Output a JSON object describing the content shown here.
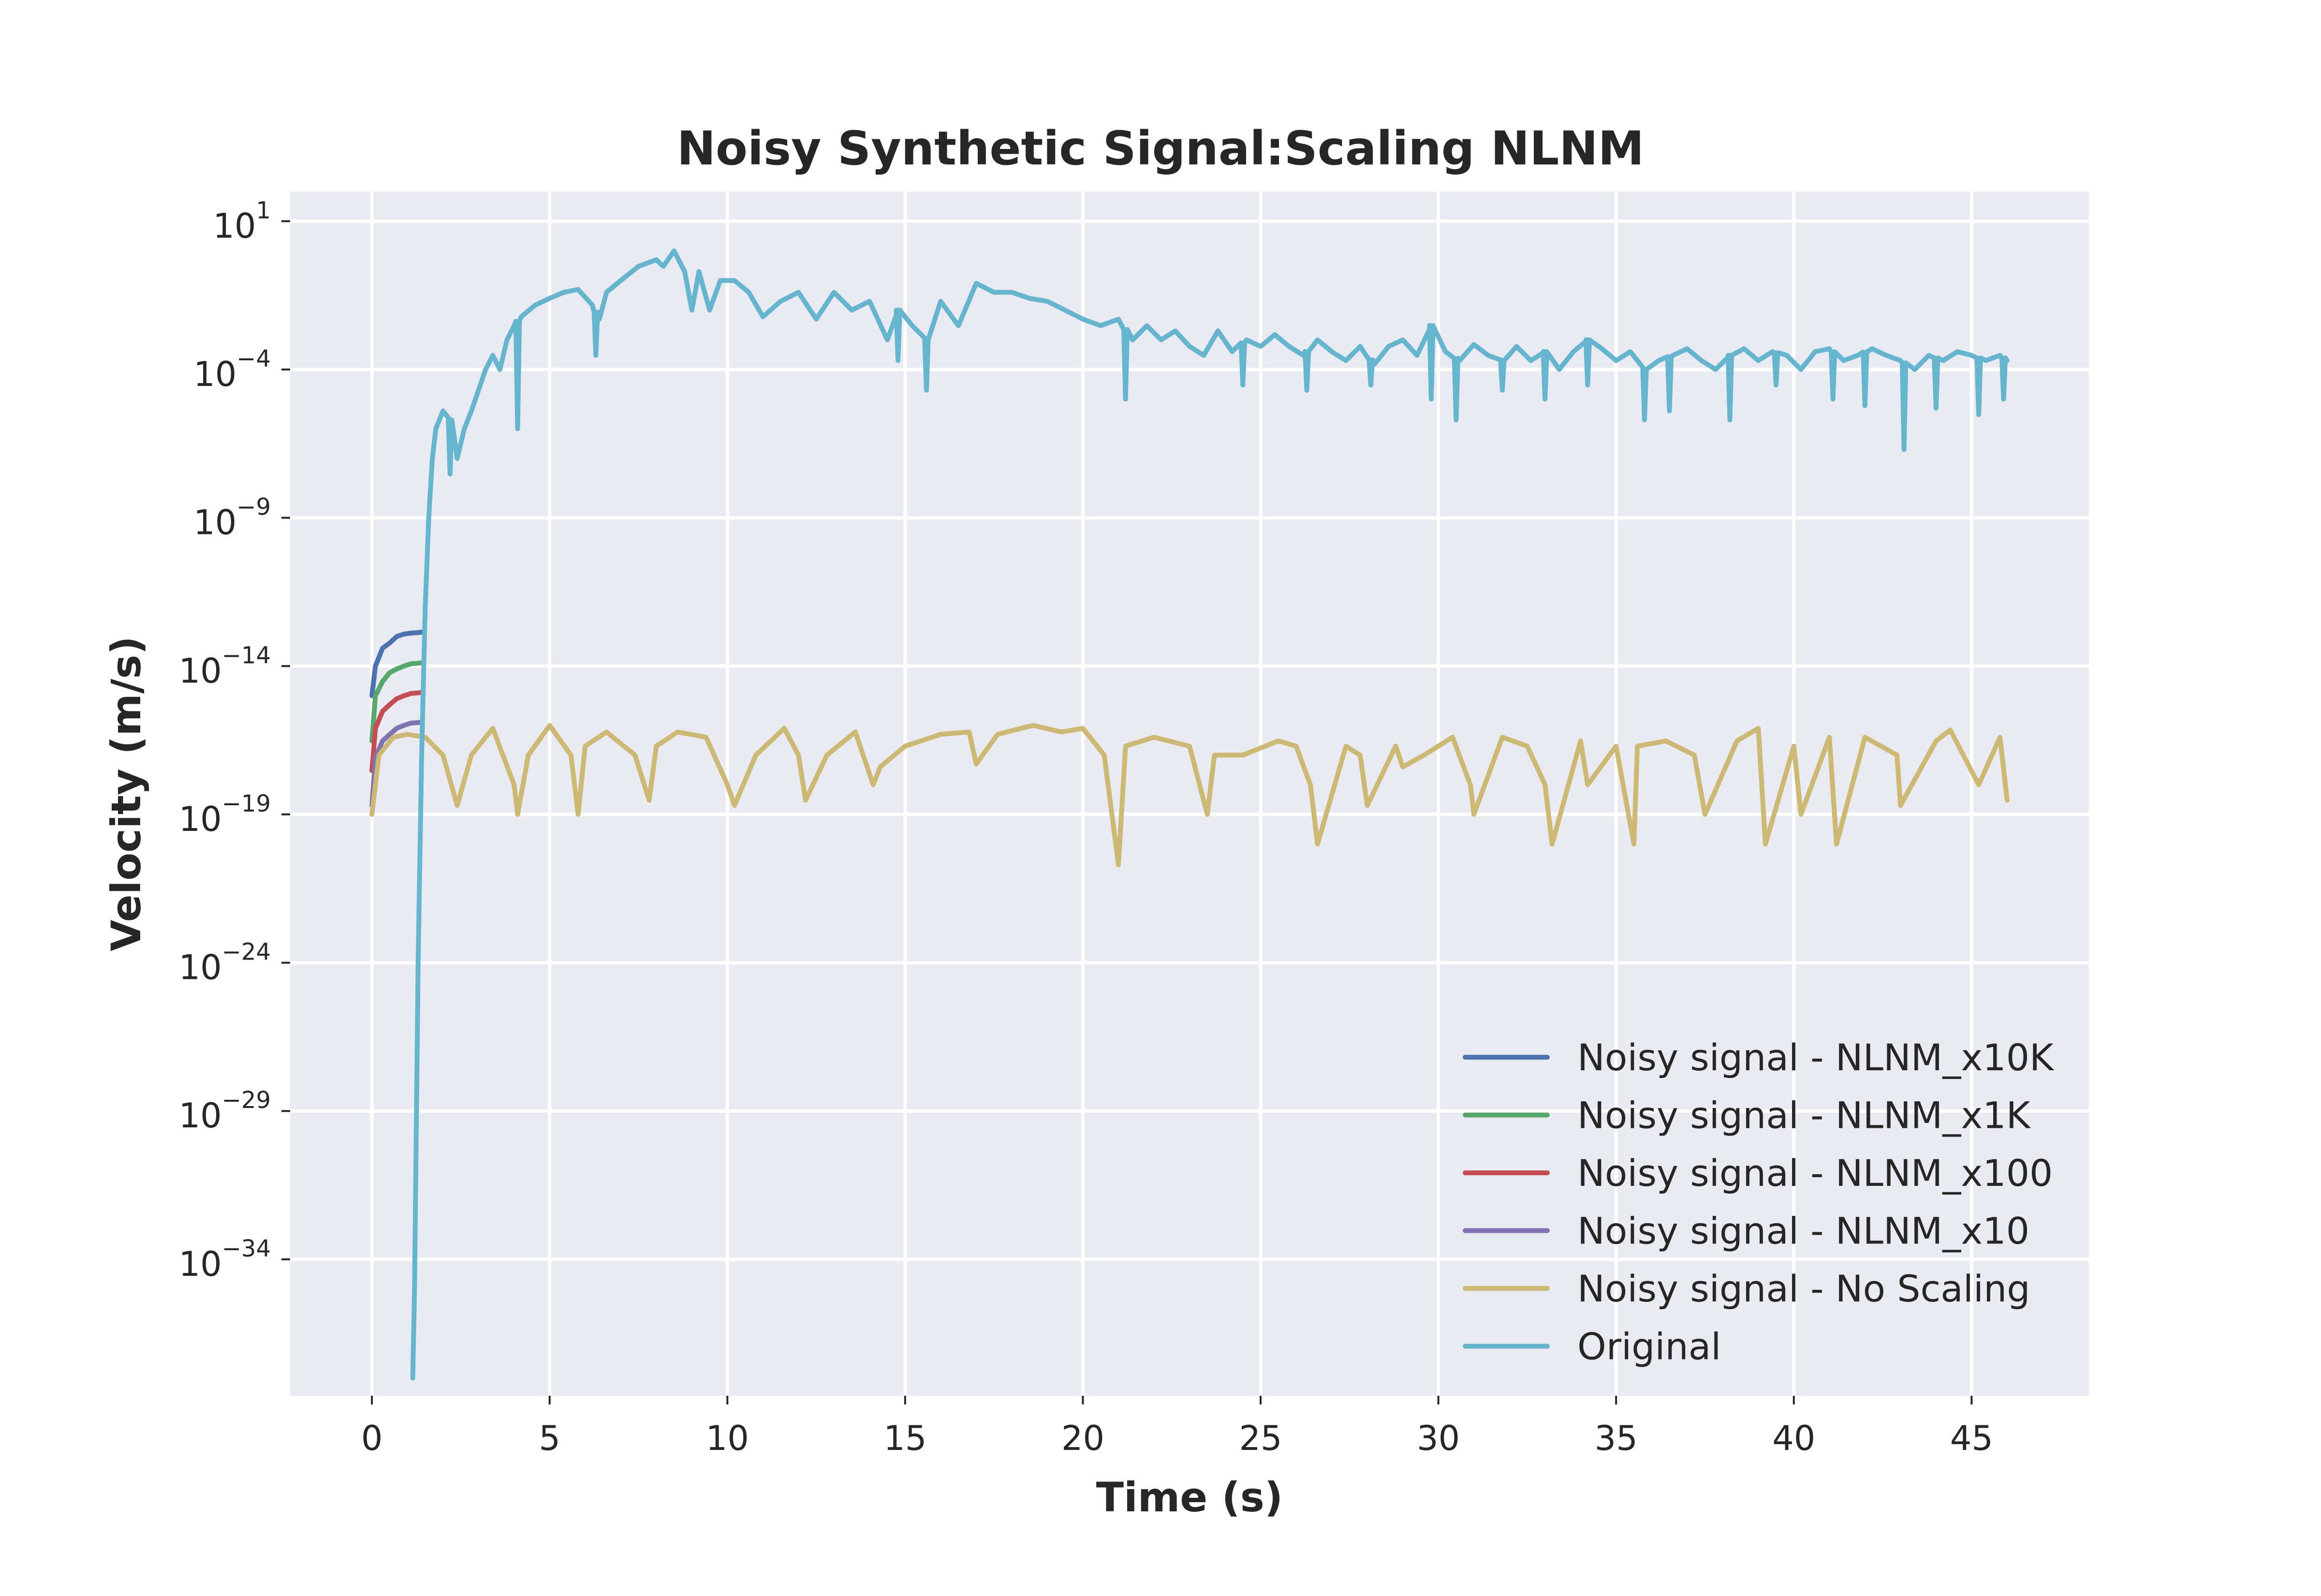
{
  "chart_data": {
    "type": "line",
    "title": "Noisy Synthetic Signal:Scaling NLNM",
    "xlabel": "Time (s)",
    "ylabel": "Velocity (m/s)",
    "y_scale": "log",
    "xlim": [
      -2.3,
      48.3
    ],
    "ylim_exponent": [
      -38.6,
      2.0
    ],
    "grid": true,
    "legend_position": "lower-right",
    "background": "#eaeaf2",
    "x_ticks": [
      0,
      5,
      10,
      15,
      20,
      25,
      30,
      35,
      40,
      45
    ],
    "y_ticks": [
      {
        "base": "10",
        "exp": "1",
        "value": 1
      },
      {
        "base": "10",
        "exp": "−4",
        "value": -4
      },
      {
        "base": "10",
        "exp": "−9",
        "value": -9
      },
      {
        "base": "10",
        "exp": "−14",
        "value": -14
      },
      {
        "base": "10",
        "exp": "−19",
        "value": -19
      },
      {
        "base": "10",
        "exp": "−24",
        "value": -24
      },
      {
        "base": "10",
        "exp": "−29",
        "value": -29
      },
      {
        "base": "10",
        "exp": "−34",
        "value": -34
      }
    ],
    "series": [
      {
        "name": "Noisy signal - NLNM_x10K",
        "color": "#4c72b0",
        "x": [
          0.0,
          0.1,
          0.3,
          0.5,
          0.7,
          0.9,
          1.1,
          1.3,
          1.4
        ],
        "y": [
          1e-15,
          1e-14,
          4e-14,
          6e-14,
          1e-13,
          1.2e-13,
          1.3e-13,
          1.35e-13,
          1.4e-13
        ]
      },
      {
        "name": "Noisy signal - NLNM_x1K",
        "color": "#55a868",
        "x": [
          0.0,
          0.1,
          0.3,
          0.5,
          0.7,
          0.9,
          1.1,
          1.3,
          1.4
        ],
        "y": [
          3e-17,
          1e-15,
          3e-15,
          6e-15,
          8e-15,
          1e-14,
          1.2e-14,
          1.25e-14,
          1.3e-14
        ]
      },
      {
        "name": "Noisy signal - NLNM_x100",
        "color": "#c44e52",
        "x": [
          0.0,
          0.1,
          0.3,
          0.5,
          0.7,
          0.9,
          1.1,
          1.3,
          1.4
        ],
        "y": [
          3e-18,
          8e-17,
          3e-16,
          5e-16,
          8e-16,
          1e-15,
          1.2e-15,
          1.25e-15,
          1.3e-15
        ]
      },
      {
        "name": "Noisy signal - NLNM_x10",
        "color": "#8172b2",
        "x": [
          0.0,
          0.1,
          0.3,
          0.5,
          0.7,
          0.9,
          1.1,
          1.3,
          1.4
        ],
        "y": [
          2e-19,
          8e-18,
          3e-17,
          5e-17,
          8e-17,
          1e-16,
          1.2e-16,
          1.25e-16,
          1.3e-16
        ]
      },
      {
        "name": "Noisy signal - No Scaling",
        "color": "#ccb974",
        "x": [
          0.0,
          0.2,
          0.6,
          1.0,
          1.5,
          2.0,
          2.4,
          2.8,
          3.4,
          4.0,
          4.1,
          4.4,
          5.0,
          5.6,
          5.8,
          6.0,
          6.6,
          7.4,
          7.8,
          8.0,
          8.6,
          9.4,
          10.0,
          10.2,
          10.8,
          11.6,
          12.0,
          12.2,
          12.8,
          13.6,
          14.1,
          14.3,
          15.0,
          16.0,
          16.8,
          17.0,
          17.6,
          18.6,
          19.4,
          20.0,
          20.6,
          21.0,
          21.2,
          22.0,
          23.0,
          23.5,
          23.7,
          24.5,
          25.5,
          26.0,
          26.4,
          26.6,
          27.4,
          27.8,
          28.0,
          28.8,
          29.0,
          29.6,
          30.4,
          30.9,
          31.0,
          31.8,
          32.5,
          33.0,
          33.2,
          34.0,
          34.2,
          35.0,
          35.5,
          35.6,
          36.4,
          37.2,
          37.5,
          38.4,
          39.0,
          39.2,
          40.0,
          40.2,
          41.0,
          41.2,
          42.0,
          42.9,
          43.0,
          44.0,
          44.4,
          45.2,
          45.8,
          46.0
        ],
        "y": [
          1e-19,
          1e-17,
          4e-17,
          5e-17,
          4e-17,
          1e-17,
          2e-19,
          1e-17,
          8e-17,
          1e-18,
          1e-19,
          1e-17,
          1e-16,
          1e-17,
          1e-19,
          2e-17,
          6e-17,
          1e-17,
          3e-19,
          2e-17,
          6e-17,
          4e-17,
          1e-18,
          2e-19,
          1e-17,
          8e-17,
          1e-17,
          3e-19,
          1e-17,
          6e-17,
          1e-18,
          4e-18,
          2e-17,
          5e-17,
          6e-17,
          5e-18,
          5e-17,
          1e-16,
          6e-17,
          8e-17,
          1e-17,
          2e-21,
          2e-17,
          4e-17,
          2e-17,
          1e-19,
          1e-17,
          1e-17,
          3e-17,
          2e-17,
          1e-18,
          1e-20,
          2e-17,
          1e-17,
          2e-19,
          2e-17,
          4e-18,
          1e-17,
          4e-17,
          1e-18,
          1e-19,
          4e-17,
          2e-17,
          1e-18,
          1e-20,
          3e-17,
          1e-18,
          2e-17,
          1e-20,
          2e-17,
          3e-17,
          1e-17,
          1e-19,
          3e-17,
          8e-17,
          1e-20,
          2e-17,
          1e-19,
          4e-17,
          1e-20,
          4e-17,
          1e-17,
          2e-19,
          3e-17,
          7e-17,
          1e-18,
          4e-17,
          3e-19
        ]
      },
      {
        "name": "Original",
        "color": "#64b5cd",
        "x": [
          1.15,
          1.2,
          1.3,
          1.4,
          1.5,
          1.6,
          1.7,
          1.8,
          2.0,
          2.2,
          2.4,
          2.6,
          2.8,
          3.0,
          3.2,
          3.4,
          3.6,
          3.8,
          4.0,
          4.2,
          4.6,
          5.0,
          5.4,
          5.8,
          6.2,
          6.4,
          6.6,
          7.0,
          7.5,
          8.0,
          8.2,
          8.5,
          8.8,
          9.0,
          9.2,
          9.5,
          9.8,
          10.2,
          10.6,
          11.0,
          11.5,
          12.0,
          12.5,
          13.0,
          13.5,
          14.0,
          14.5,
          14.8,
          15.2,
          15.6,
          16.0,
          16.5,
          17.0,
          17.5,
          18.0,
          18.5,
          19.0,
          19.5,
          20.0,
          20.5,
          21.0,
          21.4,
          21.8,
          22.2,
          22.6,
          23.0,
          23.4,
          23.8,
          24.2,
          24.6,
          25.0,
          25.4,
          25.8,
          26.2,
          26.6,
          27.0,
          27.4,
          27.8,
          28.2,
          28.6,
          29.0,
          29.4,
          29.8,
          30.2,
          30.6,
          31.0,
          31.4,
          31.8,
          32.2,
          32.6,
          33.0,
          33.4,
          33.8,
          34.2,
          34.6,
          35.0,
          35.4,
          35.8,
          36.2,
          36.6,
          37.0,
          37.4,
          37.8,
          38.2,
          38.6,
          39.0,
          39.4,
          39.8,
          40.2,
          40.6,
          41.0,
          41.4,
          41.8,
          42.2,
          42.6,
          43.0,
          43.4,
          43.8,
          44.2,
          44.6,
          45.0,
          45.4,
          45.8,
          46.0
        ],
        "y": [
          1e-38,
          1e-35,
          1e-24,
          1e-17,
          1e-12,
          1e-09,
          1e-07,
          1e-06,
          4e-06,
          2e-06,
          1e-07,
          1e-06,
          4e-06,
          2e-05,
          0.0001,
          0.0003,
          0.0001,
          0.001,
          0.003,
          0.006,
          0.015,
          0.025,
          0.04,
          0.05,
          0.015,
          0.005,
          0.04,
          0.1,
          0.3,
          0.5,
          0.3,
          1.0,
          0.2,
          0.01,
          0.2,
          0.01,
          0.1,
          0.1,
          0.04,
          0.006,
          0.02,
          0.04,
          0.005,
          0.04,
          0.01,
          0.02,
          0.001,
          0.01,
          0.003,
          0.001,
          0.02,
          0.003,
          0.08,
          0.04,
          0.04,
          0.025,
          0.02,
          0.01,
          0.005,
          0.003,
          0.005,
          0.001,
          0.003,
          0.001,
          0.002,
          0.0006,
          0.0003,
          0.002,
          0.0004,
          0.001,
          0.0006,
          0.0015,
          0.0006,
          0.0003,
          0.001,
          0.0004,
          0.0002,
          0.0006,
          0.00015,
          0.0006,
          0.001,
          0.0003,
          0.003,
          0.0004,
          0.0002,
          0.0007,
          0.0003,
          0.0002,
          0.0006,
          0.0002,
          0.0004,
          0.0001,
          0.0004,
          0.001,
          0.0005,
          0.0002,
          0.0004,
          0.0001,
          0.0002,
          0.0003,
          0.0005,
          0.0002,
          0.0001,
          0.0003,
          0.0005,
          0.0002,
          0.0004,
          0.0003,
          0.0001,
          0.0004,
          0.0005,
          0.0002,
          0.0003,
          0.0005,
          0.0003,
          0.0002,
          0.0001,
          0.0003,
          0.0002,
          0.0004,
          0.0003,
          0.0002,
          0.0003,
          0.0002
        ],
        "drops": [
          [
            2.2,
            3e-08
          ],
          [
            4.1,
            1e-06
          ],
          [
            6.3,
            0.0003
          ],
          [
            14.8,
            0.0002
          ],
          [
            15.6,
            2e-05
          ],
          [
            21.2,
            1e-05
          ],
          [
            24.5,
            3e-05
          ],
          [
            26.3,
            2e-05
          ],
          [
            28.1,
            3e-05
          ],
          [
            29.8,
            1e-05
          ],
          [
            30.5,
            2e-06
          ],
          [
            31.8,
            2e-05
          ],
          [
            33.0,
            1e-05
          ],
          [
            34.2,
            3e-05
          ],
          [
            35.8,
            2e-06
          ],
          [
            36.5,
            4e-06
          ],
          [
            38.2,
            2e-06
          ],
          [
            39.5,
            3e-05
          ],
          [
            41.1,
            1e-05
          ],
          [
            42.0,
            6e-06
          ],
          [
            43.1,
            2e-07
          ],
          [
            44.0,
            5e-06
          ],
          [
            45.2,
            3e-06
          ],
          [
            45.9,
            1e-05
          ]
        ]
      }
    ]
  }
}
